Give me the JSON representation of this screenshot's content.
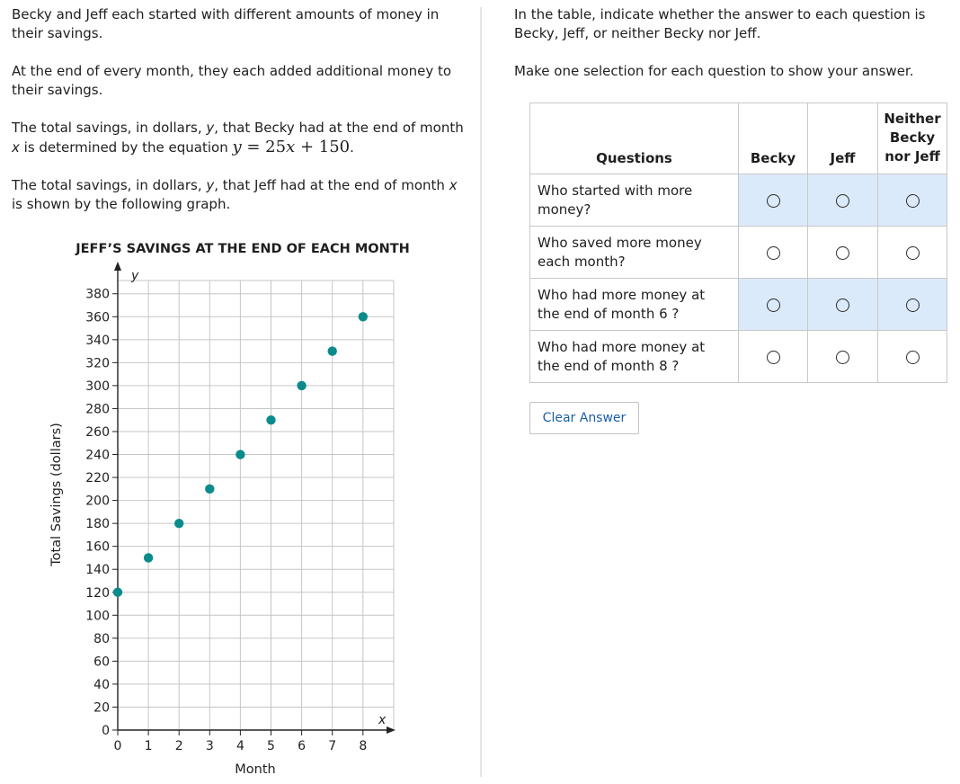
{
  "left": {
    "p1": "Becky and Jeff each started with different amounts of money in their savings.",
    "p2": "At the end of every month, they each added additional money to their savings.",
    "p3_pre": "The total savings, in dollars, ",
    "p3_var_y": "y",
    "p3_mid": ", that Becky had at the end of month ",
    "p3_var_x": "x",
    "p3_post": " is determined by the equation ",
    "eq_lhs": "y",
    "eq_mid": " = 25",
    "eq_x": "x",
    "eq_rhs": " + 150",
    "eq_end": ".",
    "p4_pre": "The total savings, in dollars, ",
    "p4_var_y": "y",
    "p4_mid": ", that Jeff had at the end of month ",
    "p4_var_x": "x",
    "p4_post": " is shown by the following graph."
  },
  "chart_data": {
    "type": "scatter",
    "title": "JEFF’S SAVINGS AT THE END OF EACH MONTH",
    "xlabel": "Month",
    "ylabel": "Total Savings (dollars)",
    "x_axis_var": "x",
    "y_axis_var": "y",
    "xlim": [
      0,
      9
    ],
    "ylim": [
      0,
      390
    ],
    "xticks": [
      0,
      1,
      2,
      3,
      4,
      5,
      6,
      7,
      8
    ],
    "yticks": [
      0,
      20,
      40,
      60,
      80,
      100,
      120,
      140,
      160,
      180,
      200,
      220,
      240,
      260,
      280,
      300,
      320,
      340,
      360,
      380
    ],
    "grid": true,
    "series": [
      {
        "x": [
          0,
          1,
          2,
          3,
          4,
          5,
          6,
          7,
          8
        ],
        "y": [
          120,
          150,
          180,
          210,
          240,
          270,
          300,
          330,
          360
        ]
      }
    ],
    "point_color": "#0b8b8b"
  },
  "right": {
    "instruction1": "In the table, indicate whether the answer to each question is Becky, Jeff, or neither Becky nor Jeff.",
    "instruction2": "Make one selection for each question to show your answer.",
    "table": {
      "headers": [
        "Questions",
        "Becky",
        "Jeff",
        "Neither Becky nor Jeff"
      ],
      "rows": [
        {
          "question": "Who started with more money?"
        },
        {
          "question": "Who saved more money each month?"
        },
        {
          "question": "Who had more money at the end of month 6 ?"
        },
        {
          "question": "Who had more money at the end of month 8 ?"
        }
      ]
    },
    "clear_label": "Clear Answer"
  }
}
